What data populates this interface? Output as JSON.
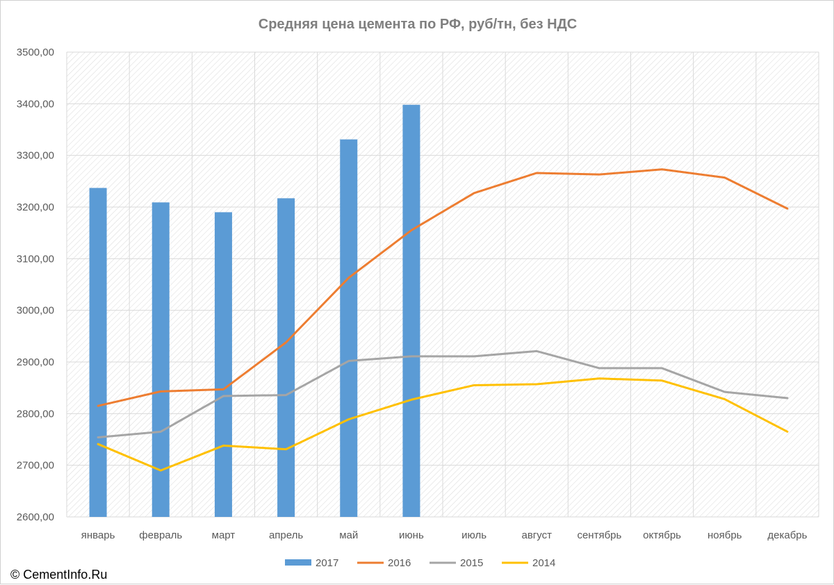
{
  "chart_data": {
    "type": "bar+line",
    "title": "Средняя цена цемента по РФ, руб/тн, без НДС",
    "categories": [
      "январь",
      "февраль",
      "март",
      "апрель",
      "май",
      "июнь",
      "июль",
      "август",
      "сентябрь",
      "октябрь",
      "ноябрь",
      "декабрь"
    ],
    "ylim": [
      2600,
      3500
    ],
    "yticks": [
      2600,
      2700,
      2800,
      2900,
      3000,
      3100,
      3200,
      3300,
      3400,
      3500
    ],
    "ytick_labels": [
      "2600,00",
      "2700,00",
      "2800,00",
      "2900,00",
      "3000,00",
      "3100,00",
      "3200,00",
      "3300,00",
      "3400,00",
      "3500,00"
    ],
    "grid": true,
    "legend_position": "bottom",
    "series": [
      {
        "name": "2017",
        "kind": "bar",
        "color": "#5b9bd5",
        "values": [
          3237,
          3209,
          3190,
          3217,
          3331,
          3398,
          null,
          null,
          null,
          null,
          null,
          null
        ]
      },
      {
        "name": "2016",
        "kind": "line",
        "color": "#ed7d31",
        "values": [
          2815,
          2843,
          2847,
          2938,
          3063,
          3155,
          3227,
          3266,
          3263,
          3273,
          3257,
          3197
        ]
      },
      {
        "name": "2015",
        "kind": "line",
        "color": "#a5a5a5",
        "values": [
          2754,
          2765,
          2834,
          2836,
          2902,
          2911,
          2911,
          2921,
          2888,
          2888,
          2842,
          2830
        ]
      },
      {
        "name": "2014",
        "kind": "line",
        "color": "#ffc000",
        "values": [
          2741,
          2690,
          2738,
          2731,
          2789,
          2827,
          2855,
          2857,
          2868,
          2864,
          2828,
          2765
        ]
      }
    ]
  },
  "source": "© CementInfo.Ru"
}
